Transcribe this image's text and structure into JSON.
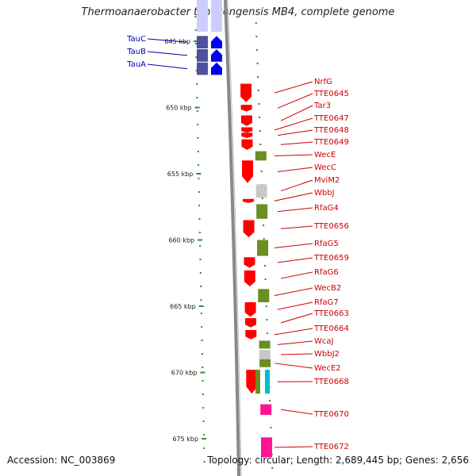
{
  "title": "Thermoanaerobacter tengcongensis MB4, complete genome",
  "footer": {
    "accession": "Accession: NC_003869",
    "topology": "Topology: circular; Length: 2,689,445 bp; Genes: 2,656"
  },
  "ticks": [
    {
      "label": "645 kbp",
      "pos": 645
    },
    {
      "label": "650 kbp",
      "pos": 650
    },
    {
      "label": "655 kbp",
      "pos": 655
    },
    {
      "label": "660 kbp",
      "pos": 660
    },
    {
      "label": "665 kbp",
      "pos": 665
    },
    {
      "label": "670 kbp",
      "pos": 670
    },
    {
      "label": "675 kbp",
      "pos": 675
    }
  ],
  "genes_left": [
    {
      "name": "TauC",
      "start": 644.6,
      "end": 645.6,
      "color": "#5050a0"
    },
    {
      "name": "TauB",
      "start": 645.6,
      "end": 646.6,
      "color": "#5050a0"
    },
    {
      "name": "TauA",
      "start": 646.6,
      "end": 647.6,
      "color": "#5050a0"
    }
  ],
  "genes_right": [
    {
      "name": "NrfG",
      "start": 648.2,
      "end": 649.6,
      "track": 1,
      "color": "#ff0000"
    },
    {
      "name": "TTE0645",
      "start": 649.8,
      "end": 650.3,
      "track": 1,
      "color": "#ff0000"
    },
    {
      "name": "Tar3",
      "start": 650.6,
      "end": 651.4,
      "track": 1,
      "color": "#ff0000"
    },
    {
      "name": "TTE0647",
      "start": 651.5,
      "end": 651.9,
      "track": 1,
      "color": "#ff0000"
    },
    {
      "name": "TTE0648",
      "start": 651.9,
      "end": 652.3,
      "track": 1,
      "color": "#ff0000"
    },
    {
      "name": "TTE0649",
      "start": 652.4,
      "end": 653.2,
      "track": 1,
      "color": "#ff0000"
    },
    {
      "name": "WecE",
      "start": 653.3,
      "end": 654.0,
      "track": 2,
      "color": "#6b8e23"
    },
    {
      "name": "WecC",
      "start": 654.0,
      "end": 655.7,
      "track": 1,
      "color": "#ff0000"
    },
    {
      "name": "MviM2",
      "start": 655.8,
      "end": 656.8,
      "track": 2,
      "color": "#c8c8c8"
    },
    {
      "name": "WbbJ",
      "start": 656.9,
      "end": 657.2,
      "track": 1,
      "color": "#ff0000"
    },
    {
      "name": "RfaG4",
      "start": 657.3,
      "end": 658.4,
      "track": 2,
      "color": "#6b8e23"
    },
    {
      "name": "TTE0656",
      "start": 658.5,
      "end": 659.8,
      "track": 1,
      "color": "#ff0000"
    },
    {
      "name": "RfaG5",
      "start": 660.0,
      "end": 661.2,
      "track": 2,
      "color": "#6b8e23"
    },
    {
      "name": "TTE0659",
      "start": 661.3,
      "end": 662.1,
      "track": 1,
      "color": "#ff0000"
    },
    {
      "name": "RfaG6",
      "start": 662.3,
      "end": 663.5,
      "track": 1,
      "color": "#ff0000"
    },
    {
      "name": "WecB2",
      "start": 663.7,
      "end": 664.7,
      "track": 2,
      "color": "#6b8e23"
    },
    {
      "name": "RfaG7",
      "start": 664.7,
      "end": 665.8,
      "track": 1,
      "color": "#ff0000"
    },
    {
      "name": "TTE0663",
      "start": 665.9,
      "end": 666.6,
      "track": 1,
      "color": "#ff0000"
    },
    {
      "name": "TTE0664",
      "start": 666.8,
      "end": 667.5,
      "track": 1,
      "color": "#ff0000"
    },
    {
      "name": "WcaJ",
      "start": 667.6,
      "end": 668.2,
      "track": 2,
      "color": "#6b8e23"
    },
    {
      "name": "WbbJ2",
      "start": 668.3,
      "end": 669.0,
      "track": 2,
      "color": "#c8c8c8"
    },
    {
      "name": "WecE2",
      "start": 669.0,
      "end": 669.6,
      "track": 2,
      "color": "#6b8e23"
    },
    {
      "name": "TTE0668",
      "start": 669.8,
      "end": 671.6,
      "track": 1,
      "color": "#ff0000"
    },
    {
      "name": "TTE0670",
      "start": 672.4,
      "end": 673.2,
      "track": 2,
      "color": "#ff1493"
    },
    {
      "name": "TTE0672",
      "start": 674.9,
      "end": 676.4,
      "track": 2,
      "color": "#ff1493"
    }
  ]
}
